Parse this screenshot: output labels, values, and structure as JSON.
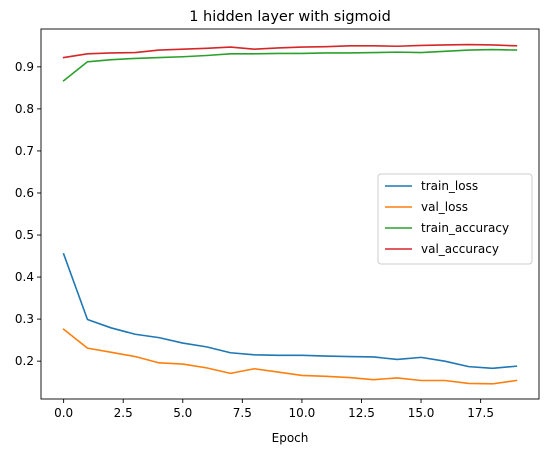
{
  "chart_data": {
    "type": "line",
    "title": "1 hidden layer with sigmoid",
    "xlabel": "Epoch",
    "ylabel": "",
    "xlim": [
      -0.95,
      19.95
    ],
    "ylim": [
      0.11,
      0.99
    ],
    "xticks": [
      0.0,
      2.5,
      5.0,
      7.5,
      10.0,
      12.5,
      15.0,
      17.5
    ],
    "xtick_labels": [
      "0.0",
      "2.5",
      "5.0",
      "7.5",
      "10.0",
      "12.5",
      "15.0",
      "17.5"
    ],
    "yticks": [
      0.2,
      0.3,
      0.4,
      0.5,
      0.6,
      0.7,
      0.8,
      0.9
    ],
    "ytick_labels": [
      "0.2",
      "0.3",
      "0.4",
      "0.5",
      "0.6",
      "0.7",
      "0.8",
      "0.9"
    ],
    "grid": false,
    "legend_position": "center-right",
    "x": [
      0,
      1,
      2,
      3,
      4,
      5,
      6,
      7,
      8,
      9,
      10,
      11,
      12,
      13,
      14,
      15,
      16,
      17,
      18,
      19
    ],
    "series": [
      {
        "name": "train_loss",
        "color": "#1f77b4",
        "values": [
          0.455,
          0.299,
          0.279,
          0.264,
          0.256,
          0.243,
          0.234,
          0.22,
          0.215,
          0.214,
          0.214,
          0.212,
          0.211,
          0.21,
          0.204,
          0.209,
          0.2,
          0.187,
          0.183,
          0.188
        ]
      },
      {
        "name": "val_loss",
        "color": "#ff7f0e",
        "values": [
          0.276,
          0.231,
          0.221,
          0.211,
          0.196,
          0.193,
          0.184,
          0.171,
          0.182,
          0.174,
          0.166,
          0.164,
          0.161,
          0.156,
          0.16,
          0.154,
          0.154,
          0.147,
          0.146,
          0.154
        ]
      },
      {
        "name": "train_accuracy",
        "color": "#2ca02c",
        "values": [
          0.867,
          0.912,
          0.917,
          0.92,
          0.922,
          0.924,
          0.927,
          0.931,
          0.931,
          0.932,
          0.932,
          0.933,
          0.933,
          0.934,
          0.935,
          0.934,
          0.937,
          0.94,
          0.941,
          0.94
        ]
      },
      {
        "name": "val_accuracy",
        "color": "#d62728",
        "values": [
          0.922,
          0.931,
          0.933,
          0.934,
          0.94,
          0.942,
          0.944,
          0.947,
          0.942,
          0.945,
          0.947,
          0.948,
          0.95,
          0.95,
          0.949,
          0.951,
          0.952,
          0.953,
          0.952,
          0.95
        ]
      }
    ]
  }
}
